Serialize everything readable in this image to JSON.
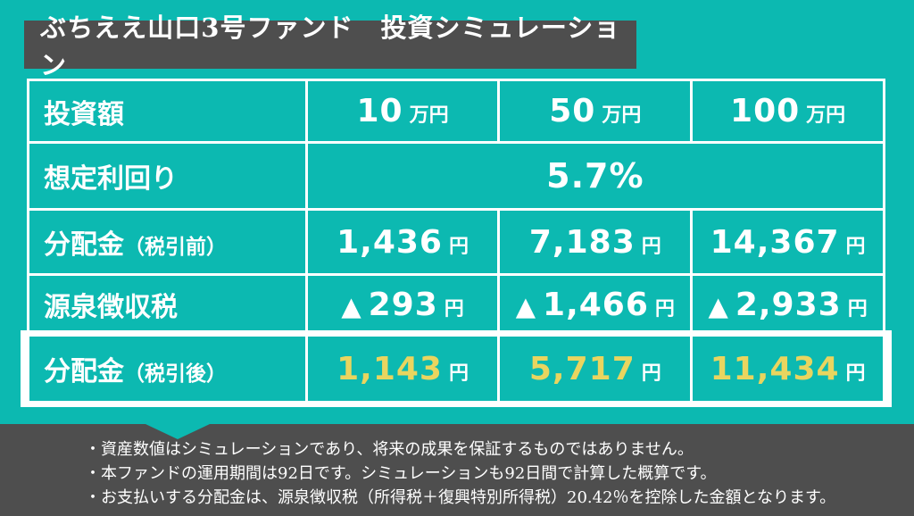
{
  "title": "ぶちええ山口3号ファンド　投資シミュレーション",
  "colors": {
    "background_teal": "#0CB9B1",
    "panel_dark_gray": "#4E4E4E",
    "highlight_yellow": "#E9D55F",
    "text_white": "#FFFFFF"
  },
  "table": {
    "rows": [
      {
        "label": "投資額",
        "label_note": "",
        "cells": [
          {
            "num": "10",
            "unit": "万円"
          },
          {
            "num": "50",
            "unit": "万円"
          },
          {
            "num": "100",
            "unit": "万円"
          }
        ]
      },
      {
        "label": "想定利回り",
        "label_note": "",
        "merged_value": "5.7%"
      },
      {
        "label": "分配金",
        "label_note": "（税引前）",
        "cells": [
          {
            "num": "1,436",
            "unit": "円"
          },
          {
            "num": "7,183",
            "unit": "円"
          },
          {
            "num": "14,367",
            "unit": "円"
          }
        ]
      },
      {
        "label": "源泉徴収税",
        "label_note": "",
        "cells": [
          {
            "prefix": "▲",
            "num": "293",
            "unit": "円"
          },
          {
            "prefix": "▲",
            "num": "1,466",
            "unit": "円"
          },
          {
            "prefix": "▲",
            "num": "2,933",
            "unit": "円"
          }
        ]
      },
      {
        "label": "分配金",
        "label_note": "（税引後）",
        "cells": [
          {
            "num": "1,143",
            "unit": "円"
          },
          {
            "num": "5,717",
            "unit": "円"
          },
          {
            "num": "11,434",
            "unit": "円"
          }
        ]
      }
    ]
  },
  "notes": [
    "・資産数値はシミュレーションであり、将来の成果を保証するものではありません。",
    "・本ファンドの運用期間は92日です。シミュレーションも92日間で計算した概算です。",
    "・お支払いする分配金は、源泉徴収税（所得税＋復興特別所得税）20.42％を控除した金額となります。"
  ],
  "chart_data": {
    "type": "table",
    "title": "ぶちええ山口3号ファンド 投資シミュレーション",
    "columns": [
      "投資額",
      "10万円",
      "50万円",
      "100万円"
    ],
    "rows": [
      [
        "想定利回り",
        "5.7%",
        "5.7%",
        "5.7%"
      ],
      [
        "分配金（税引前）",
        1436,
        7183,
        14367
      ],
      [
        "源泉徴収税",
        -293,
        -1466,
        -2933
      ],
      [
        "分配金（税引後）",
        1143,
        5717,
        11434
      ]
    ],
    "unit": "円",
    "assumed_yield_percent": 5.7,
    "operation_period_days": 92,
    "withholding_tax_rate_percent": 20.42
  }
}
